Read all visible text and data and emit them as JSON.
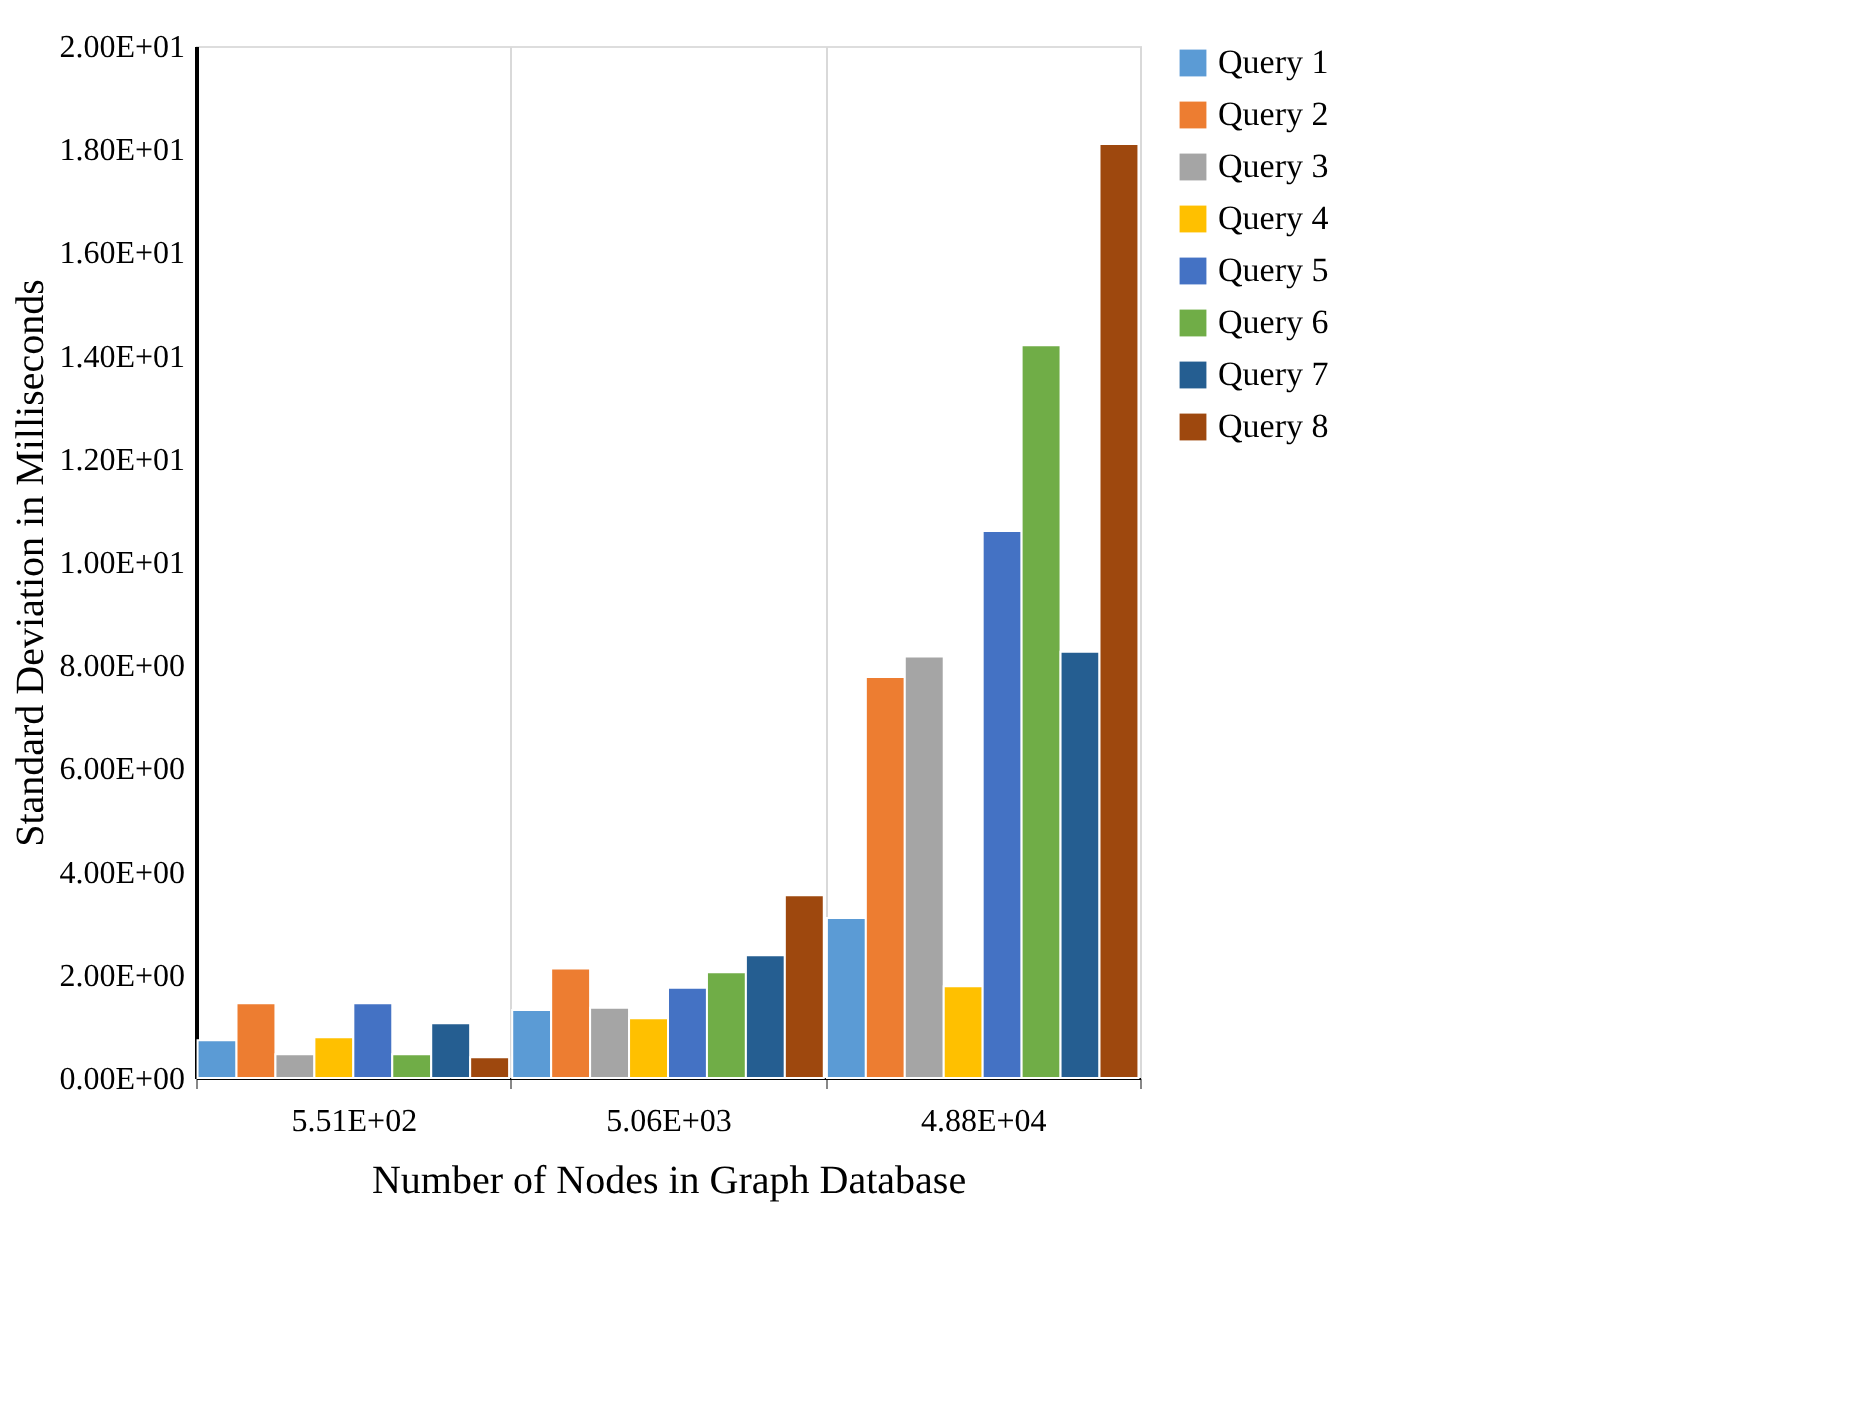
{
  "chart_data": {
    "type": "bar",
    "xlabel": "Number of Nodes in Graph Database",
    "ylabel": "Standard Deviation in Milliseconds",
    "categories": [
      "5.51E+02",
      "5.06E+03",
      "4.88E+04"
    ],
    "series": [
      {
        "name": "Query 1",
        "color": "#5b9bd5",
        "values": [
          0.73,
          1.32,
          3.1
        ]
      },
      {
        "name": "Query 2",
        "color": "#ed7d31",
        "values": [
          1.45,
          2.12,
          7.77
        ]
      },
      {
        "name": "Query 3",
        "color": "#a5a5a5",
        "values": [
          0.46,
          1.36,
          8.17
        ]
      },
      {
        "name": "Query 4",
        "color": "#ffc000",
        "values": [
          0.79,
          1.16,
          1.78
        ]
      },
      {
        "name": "Query 5",
        "color": "#4472c4",
        "values": [
          1.45,
          1.75,
          10.6
        ]
      },
      {
        "name": "Query 6",
        "color": "#70ad47",
        "values": [
          0.46,
          2.05,
          14.2
        ]
      },
      {
        "name": "Query 7",
        "color": "#255e91",
        "values": [
          1.06,
          2.38,
          8.26
        ]
      },
      {
        "name": "Query 8",
        "color": "#9e480e",
        "values": [
          0.4,
          3.54,
          18.1
        ]
      }
    ],
    "ylim": [
      0,
      20
    ],
    "yticks": [
      {
        "value": 0,
        "label": "0.00E+00"
      },
      {
        "value": 2,
        "label": "2.00E+00"
      },
      {
        "value": 4,
        "label": "4.00E+00"
      },
      {
        "value": 6,
        "label": "6.00E+00"
      },
      {
        "value": 8,
        "label": "8.00E+00"
      },
      {
        "value": 10,
        "label": "1.00E+01"
      },
      {
        "value": 12,
        "label": "1.20E+01"
      },
      {
        "value": 14,
        "label": "1.40E+01"
      },
      {
        "value": 16,
        "label": "1.60E+01"
      },
      {
        "value": 18,
        "label": "1.80E+01"
      },
      {
        "value": 20,
        "label": "2.00E+01"
      }
    ],
    "grid": "x",
    "legend": "right"
  }
}
